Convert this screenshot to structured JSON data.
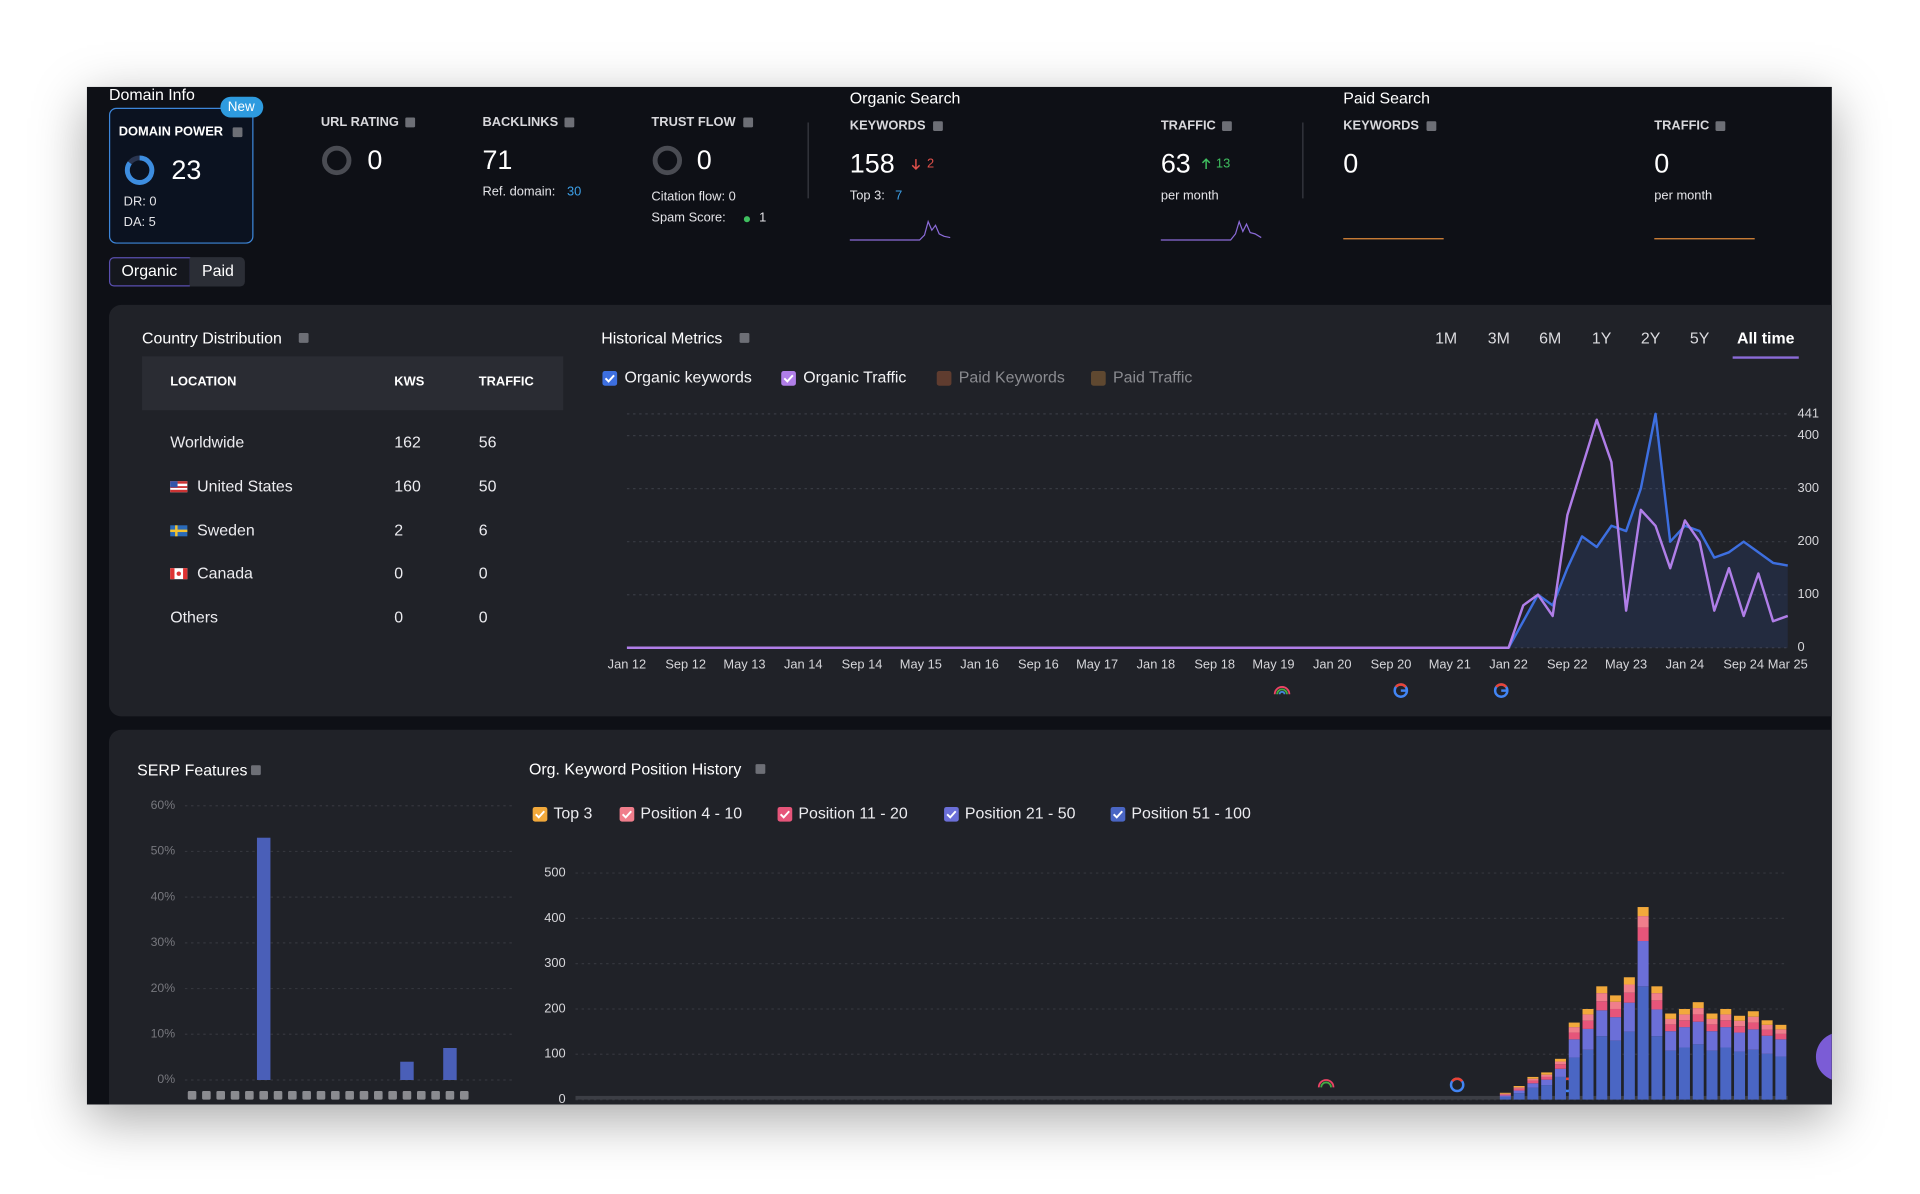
{
  "domain_info": {
    "title": "Domain Info",
    "badge": "New",
    "domain_power": {
      "label": "DOMAIN POWER",
      "value": 23,
      "dr": "DR: 0",
      "da": "DA: 5"
    },
    "tabs": [
      "Organic",
      "Paid"
    ]
  },
  "metrics": {
    "url_rating": {
      "label": "URL RATING",
      "value": 0
    },
    "backlinks": {
      "label": "BACKLINKS",
      "value": 71,
      "ref_label": "Ref. domain:",
      "ref_value": 30
    },
    "trust_flow": {
      "label": "TRUST FLOW",
      "value": 0,
      "citation_flow": "Citation flow: 0",
      "spam_label": "Spam Score:",
      "spam_value": 1
    }
  },
  "organic_search": {
    "title": "Organic Search",
    "keywords": {
      "label": "KEYWORDS",
      "value": 158,
      "change": 2,
      "top3_label": "Top 3:",
      "top3": 7
    },
    "traffic": {
      "label": "TRAFFIC",
      "value": 63,
      "change": 13,
      "unit": "per month"
    }
  },
  "paid_search": {
    "title": "Paid Search",
    "keywords": {
      "label": "KEYWORDS",
      "value": 0
    },
    "traffic": {
      "label": "TRAFFIC",
      "value": 0,
      "unit": "per month"
    }
  },
  "country_distribution": {
    "title": "Country Distribution",
    "columns": [
      "LOCATION",
      "KWS",
      "TRAFFIC"
    ],
    "rows": [
      [
        "Worldwide",
        162,
        56
      ],
      [
        "United States",
        160,
        50
      ],
      [
        "Sweden",
        2,
        6
      ],
      [
        "Canada",
        0,
        0
      ],
      [
        "Others",
        0,
        0
      ]
    ]
  },
  "chart_data": [
    {
      "type": "line",
      "title": "Historical Metrics",
      "ranges": [
        "1M",
        "3M",
        "6M",
        "1Y",
        "2Y",
        "5Y",
        "All time"
      ],
      "active_range": "All time",
      "categories": [
        "Jan 12",
        null,
        null,
        null,
        "Sep 12",
        null,
        null,
        null,
        "May 13",
        null,
        null,
        null,
        "Jan 14",
        null,
        null,
        null,
        "Sep 14",
        null,
        null,
        null,
        "May 15",
        null,
        null,
        null,
        "Jan 16",
        null,
        null,
        null,
        "Sep 16",
        null,
        null,
        null,
        "May 17",
        null,
        null,
        null,
        "Jan 18",
        null,
        null,
        null,
        "Sep 18",
        null,
        null,
        null,
        "May 19",
        null,
        null,
        null,
        "Jan 20",
        null,
        null,
        null,
        "Sep 20",
        null,
        null,
        null,
        "May 21",
        null,
        null,
        null,
        "Jan 22",
        null,
        null,
        null,
        "Sep 22",
        null,
        null,
        null,
        "May 23",
        null,
        null,
        null,
        "Jan 24",
        null,
        null,
        null,
        "Sep 24",
        null,
        null,
        "Mar 25"
      ],
      "series": [
        {
          "name": "Organic keywords",
          "color": "#3d6fe0",
          "fill_area": true,
          "values": [
            0,
            0,
            0,
            0,
            0,
            0,
            0,
            0,
            0,
            0,
            0,
            0,
            0,
            0,
            0,
            0,
            0,
            0,
            0,
            0,
            0,
            0,
            0,
            0,
            0,
            0,
            0,
            0,
            0,
            0,
            0,
            0,
            0,
            0,
            0,
            0,
            0,
            0,
            0,
            0,
            0,
            0,
            0,
            0,
            0,
            0,
            0,
            0,
            0,
            0,
            0,
            0,
            0,
            0,
            0,
            0,
            0,
            0,
            0,
            0,
            0,
            50,
            100,
            80,
            150,
            210,
            190,
            230,
            220,
            300,
            441,
            200,
            230,
            220,
            170,
            180,
            200,
            180,
            160,
            155
          ]
        },
        {
          "name": "Organic Traffic",
          "color": "#b07ee8",
          "fill_area": false,
          "values": [
            0,
            0,
            0,
            0,
            0,
            0,
            0,
            0,
            0,
            0,
            0,
            0,
            0,
            0,
            0,
            0,
            0,
            0,
            0,
            0,
            0,
            0,
            0,
            0,
            0,
            0,
            0,
            0,
            0,
            0,
            0,
            0,
            0,
            0,
            0,
            0,
            0,
            0,
            0,
            0,
            0,
            0,
            0,
            0,
            0,
            0,
            0,
            0,
            0,
            0,
            0,
            0,
            0,
            0,
            0,
            0,
            0,
            0,
            0,
            0,
            0,
            80,
            100,
            60,
            250,
            340,
            430,
            350,
            70,
            260,
            230,
            150,
            240,
            200,
            70,
            150,
            60,
            140,
            50,
            60
          ]
        }
      ],
      "hidden_series": [
        {
          "name": "Paid Keywords",
          "color": "#8a4f33"
        },
        {
          "name": "Paid Traffic",
          "color": "#8a6235"
        }
      ],
      "ylim": [
        0,
        441
      ],
      "yticks": [
        0,
        100,
        200,
        300,
        400,
        441
      ],
      "y_axis_side": "right",
      "grid": true
    },
    {
      "type": "bar",
      "title": "SERP Features",
      "categories": [
        null,
        null,
        null,
        null,
        null,
        null,
        null,
        null,
        null,
        null,
        null,
        null,
        null,
        null,
        null,
        null,
        null,
        null,
        null,
        null
      ],
      "values": [
        0,
        0,
        0,
        0,
        0,
        53,
        0,
        0,
        0,
        0,
        0,
        0,
        0,
        0,
        0,
        4,
        0,
        0,
        7,
        0
      ],
      "color": "#4a5fb8",
      "ylim": [
        0,
        60
      ],
      "yticks": [
        {
          "value": 0,
          "label": "0%"
        },
        {
          "value": 10,
          "label": "10%"
        },
        {
          "value": 20,
          "label": "20%"
        },
        {
          "value": 30,
          "label": "30%"
        },
        {
          "value": 40,
          "label": "40%"
        },
        {
          "value": 50,
          "label": "50%"
        },
        {
          "value": 60,
          "label": "60%"
        }
      ],
      "grid": true
    },
    {
      "type": "stacked_bar",
      "title": "Org. Keyword Position History",
      "categories": [
        null,
        null,
        null,
        null,
        null,
        null,
        null,
        null,
        null,
        null,
        null,
        null,
        null,
        null,
        null,
        null,
        null,
        null,
        null,
        null,
        null,
        null,
        null,
        null,
        null,
        null,
        null,
        null,
        null,
        null,
        null,
        null,
        null,
        null,
        null,
        null,
        null,
        null,
        null,
        null,
        null,
        null,
        null,
        null,
        null,
        null,
        null,
        null,
        null,
        null,
        null,
        null,
        null,
        null,
        null,
        null,
        null,
        null,
        null,
        null,
        null,
        null,
        null,
        null,
        null,
        null,
        null,
        null,
        null,
        null,
        null,
        null,
        null,
        null,
        null,
        null,
        null,
        null,
        null,
        null,
        null,
        null,
        null,
        null,
        null,
        null,
        null,
        null
      ],
      "series": [
        {
          "name": "Top 3",
          "color": "#f2a93b",
          "values": [
            0,
            0,
            0,
            0,
            0,
            0,
            0,
            0,
            0,
            0,
            0,
            0,
            0,
            0,
            0,
            0,
            0,
            0,
            0,
            0,
            0,
            0,
            0,
            0,
            0,
            0,
            0,
            0,
            0,
            0,
            0,
            0,
            0,
            0,
            0,
            0,
            0,
            0,
            0,
            0,
            0,
            0,
            0,
            0,
            0,
            0,
            0,
            0,
            0,
            0,
            0,
            0,
            0,
            0,
            0,
            0,
            0,
            0,
            0,
            0,
            0,
            0,
            0,
            0,
            0,
            0,
            0,
            2,
            3,
            4,
            5,
            6,
            10,
            12,
            15,
            14,
            16,
            20,
            15,
            12,
            12,
            13,
            12,
            12,
            11,
            12,
            10,
            10
          ]
        },
        {
          "name": "Position 4 - 10",
          "color": "#f07e8c",
          "values": [
            0,
            0,
            0,
            0,
            0,
            0,
            0,
            0,
            0,
            0,
            0,
            0,
            0,
            0,
            0,
            0,
            0,
            0,
            0,
            0,
            0,
            0,
            0,
            0,
            0,
            0,
            0,
            0,
            0,
            0,
            0,
            0,
            0,
            0,
            0,
            0,
            0,
            0,
            0,
            0,
            0,
            0,
            0,
            0,
            0,
            0,
            0,
            0,
            0,
            0,
            0,
            0,
            0,
            0,
            0,
            0,
            0,
            0,
            0,
            0,
            0,
            0,
            0,
            0,
            0,
            0,
            0,
            2,
            3,
            4,
            5,
            6,
            12,
            14,
            18,
            16,
            18,
            25,
            16,
            12,
            13,
            14,
            12,
            13,
            12,
            13,
            11,
            10
          ]
        },
        {
          "name": "Position 11 - 20",
          "color": "#e6557a",
          "values": [
            0,
            0,
            0,
            0,
            0,
            0,
            0,
            0,
            0,
            0,
            0,
            0,
            0,
            0,
            0,
            0,
            0,
            0,
            0,
            0,
            0,
            0,
            0,
            0,
            0,
            0,
            0,
            0,
            0,
            0,
            0,
            0,
            0,
            0,
            0,
            0,
            0,
            0,
            0,
            0,
            0,
            0,
            0,
            0,
            0,
            0,
            0,
            0,
            0,
            0,
            0,
            0,
            0,
            0,
            0,
            0,
            0,
            0,
            0,
            0,
            0,
            0,
            0,
            0,
            0,
            0,
            0,
            2,
            4,
            6,
            6,
            10,
            15,
            18,
            20,
            18,
            22,
            30,
            20,
            15,
            15,
            16,
            15,
            15,
            14,
            15,
            13,
            12
          ]
        },
        {
          "name": "Position 21 - 50",
          "color": "#6b6fd8",
          "values": [
            0,
            0,
            0,
            0,
            0,
            0,
            0,
            0,
            0,
            0,
            0,
            0,
            0,
            0,
            0,
            0,
            0,
            0,
            0,
            0,
            0,
            0,
            0,
            0,
            0,
            0,
            0,
            0,
            0,
            0,
            0,
            0,
            0,
            0,
            0,
            0,
            0,
            0,
            0,
            0,
            0,
            0,
            0,
            0,
            0,
            0,
            0,
            0,
            0,
            0,
            0,
            0,
            0,
            0,
            0,
            0,
            0,
            0,
            0,
            0,
            0,
            0,
            0,
            0,
            0,
            0,
            0,
            3,
            6,
            10,
            12,
            18,
            40,
            46,
            57,
            52,
            64,
            100,
            59,
            43,
            45,
            50,
            43,
            45,
            42,
            45,
            40,
            38
          ]
        },
        {
          "name": "Position 51 - 100",
          "color": "#4a66c4",
          "values": [
            0,
            0,
            0,
            0,
            0,
            0,
            0,
            0,
            0,
            0,
            0,
            0,
            0,
            0,
            0,
            0,
            0,
            0,
            0,
            0,
            0,
            0,
            0,
            0,
            0,
            0,
            0,
            0,
            0,
            0,
            0,
            0,
            0,
            0,
            0,
            0,
            0,
            0,
            0,
            0,
            0,
            0,
            0,
            0,
            0,
            0,
            0,
            0,
            0,
            0,
            0,
            0,
            0,
            0,
            0,
            0,
            0,
            0,
            0,
            0,
            0,
            0,
            0,
            0,
            0,
            0,
            0,
            6,
            14,
            26,
            32,
            50,
            93,
            110,
            140,
            130,
            150,
            250,
            140,
            108,
            115,
            122,
            108,
            115,
            106,
            110,
            101,
            95
          ]
        }
      ],
      "ylim": [
        0,
        500
      ],
      "yticks": [
        0,
        100,
        200,
        300,
        400,
        500
      ],
      "grid": true
    }
  ]
}
